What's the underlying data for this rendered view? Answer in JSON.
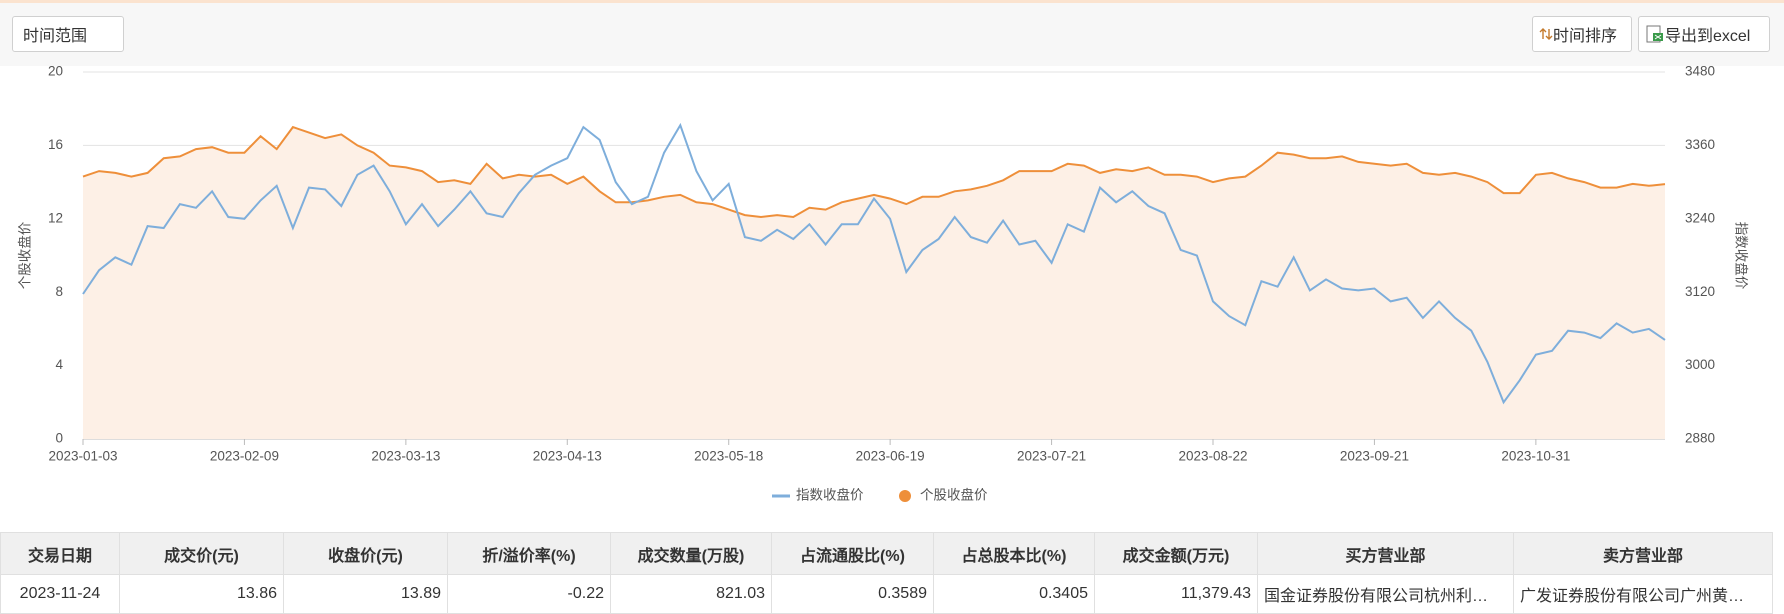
{
  "toolbar": {
    "filter": "时间范围",
    "sort": "时间排序",
    "export": "导出到excel"
  },
  "chart_data": {
    "type": "line",
    "categories": [
      "2023-01-03",
      null,
      null,
      null,
      null,
      null,
      null,
      null,
      null,
      null,
      "2023-02-09",
      null,
      null,
      null,
      null,
      null,
      null,
      null,
      null,
      null,
      "2023-03-13",
      null,
      null,
      null,
      null,
      null,
      null,
      null,
      null,
      null,
      "2023-04-13",
      null,
      null,
      null,
      null,
      null,
      null,
      null,
      null,
      null,
      "2023-05-18",
      null,
      null,
      null,
      null,
      null,
      null,
      null,
      null,
      null,
      "2023-06-19",
      null,
      null,
      null,
      null,
      null,
      null,
      null,
      null,
      null,
      "2023-07-21",
      null,
      null,
      null,
      null,
      null,
      null,
      null,
      null,
      null,
      "2023-08-22",
      null,
      null,
      null,
      null,
      null,
      null,
      null,
      null,
      null,
      "2023-09-21",
      null,
      null,
      null,
      null,
      null,
      null,
      null,
      null,
      null,
      "2023-10-31",
      null,
      null,
      null,
      null,
      null,
      null,
      null,
      null
    ],
    "series": [
      {
        "name": "指数收盘价",
        "color": "#7eaedb",
        "axis": "y2",
        "values": [
          3117,
          3156,
          3177,
          3165,
          3228,
          3225,
          3264,
          3258,
          3285,
          3243,
          3240,
          3270,
          3294,
          3225,
          3291,
          3288,
          3261,
          3312,
          3327,
          3285,
          3231,
          3264,
          3228,
          3255,
          3285,
          3249,
          3243,
          3282,
          3312,
          3327,
          3339,
          3390,
          3369,
          3300,
          3264,
          3276,
          3348,
          3393,
          3318,
          3270,
          3297,
          3210,
          3204,
          3222,
          3207,
          3231,
          3198,
          3231,
          3231,
          3273,
          3240,
          3153,
          3189,
          3207,
          3243,
          3210,
          3201,
          3237,
          3198,
          3204,
          3168,
          3231,
          3219,
          3291,
          3267,
          3285,
          3261,
          3249,
          3189,
          3180,
          3105,
          3081,
          3066,
          3138,
          3129,
          3177,
          3123,
          3141,
          3126,
          3123,
          3126,
          3105,
          3111,
          3078,
          3105,
          3078,
          3057,
          3006,
          2940,
          2976,
          3018,
          3024,
          3057,
          3054,
          3045,
          3069,
          3054,
          3060,
          3042
        ]
      },
      {
        "name": "个股收盘价",
        "color": "#ee8f3a",
        "area_color": "#fdf0e6",
        "values": [
          14.3,
          14.6,
          14.5,
          14.3,
          14.5,
          15.3,
          15.4,
          15.8,
          15.9,
          15.6,
          15.6,
          16.5,
          15.8,
          17.0,
          16.7,
          16.4,
          16.6,
          16.0,
          15.6,
          14.9,
          14.8,
          14.6,
          14.0,
          14.1,
          13.9,
          15.0,
          14.2,
          14.4,
          14.3,
          14.4,
          13.9,
          14.3,
          13.5,
          12.9,
          12.9,
          13.0,
          13.2,
          13.3,
          12.9,
          12.8,
          12.5,
          12.2,
          12.1,
          12.2,
          12.1,
          12.6,
          12.5,
          12.9,
          13.1,
          13.3,
          13.1,
          12.8,
          13.2,
          13.2,
          13.5,
          13.6,
          13.8,
          14.1,
          14.6,
          14.6,
          14.6,
          15.0,
          14.9,
          14.5,
          14.7,
          14.6,
          14.8,
          14.4,
          14.4,
          14.3,
          14.0,
          14.2,
          14.3,
          14.9,
          15.6,
          15.5,
          15.3,
          15.3,
          15.4,
          15.1,
          15.0,
          14.9,
          15.0,
          14.5,
          14.4,
          14.5,
          14.3,
          14.0,
          13.4,
          13.4,
          14.4,
          14.5,
          14.2,
          14.0,
          13.7,
          13.7,
          13.9,
          13.8,
          13.89
        ]
      }
    ],
    "y_label": "个股收盘价",
    "y2_label": "指数收盘价",
    "ylim": [
      0,
      20
    ],
    "yticks": [
      0,
      4,
      8,
      12,
      16,
      20
    ],
    "y2lim": [
      2880,
      3480
    ],
    "y2ticks": [
      2880,
      3000,
      3120,
      3240,
      3360,
      3480
    ],
    "grid": true,
    "legend": "bottom"
  },
  "table": {
    "headers": [
      "交易日期",
      "成交价(元)",
      "收盘价(元)",
      "折/溢价率(%)",
      "成交数量(万股)",
      "占流通股比(%)",
      "占总股本比(%)",
      "成交金额(万元)",
      "买方营业部",
      "卖方营业部"
    ],
    "rows": [
      [
        "2023-11-24",
        "13.86",
        "13.89",
        "-0.22",
        "821.03",
        "0.3589",
        "0.3405",
        "11,379.43",
        "国金证券股份有限公司杭州利…",
        "广发证券股份有限公司广州黄…"
      ]
    ]
  }
}
